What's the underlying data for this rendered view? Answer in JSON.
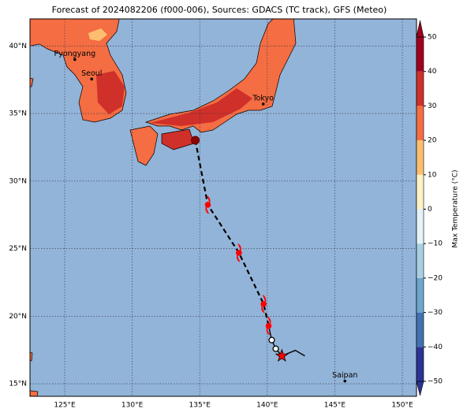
{
  "title": "Forecast of 2024082206 (f000-006), Sources: GDACS (TC track), GFS (Meteo)",
  "map": {
    "xlim": [
      122.43,
      151.05
    ],
    "ylim": [
      14.07,
      42
    ],
    "lon_ticks": [
      {
        "value": 125,
        "label": "125°E"
      },
      {
        "value": 130,
        "label": "130°E"
      },
      {
        "value": 135,
        "label": "135°E"
      },
      {
        "value": 140,
        "label": "140°E"
      },
      {
        "value": 145,
        "label": "145°E"
      },
      {
        "value": 150,
        "label": "150°E"
      }
    ],
    "lat_ticks": [
      {
        "value": 15,
        "label": "15°N"
      },
      {
        "value": 20,
        "label": "20°N"
      },
      {
        "value": 25,
        "label": "25°N"
      },
      {
        "value": 30,
        "label": "30°N"
      },
      {
        "value": 35,
        "label": "35°N"
      },
      {
        "value": 40,
        "label": "40°N"
      }
    ],
    "grid": true,
    "ocean_color": "#92b4d8"
  },
  "colorbar": {
    "label": "Max Temperature (°C)",
    "lim": [
      -50,
      50
    ],
    "ticks": [
      {
        "value": -50,
        "label": "−50"
      },
      {
        "value": -40,
        "label": "−40"
      },
      {
        "value": -30,
        "label": "−30"
      },
      {
        "value": -20,
        "label": "−20"
      },
      {
        "value": -10,
        "label": "−10"
      },
      0,
      10,
      20,
      30,
      40,
      50
    ],
    "colors": [
      "#2b3494",
      "#4271b1",
      "#6ea6cd",
      "#a8d0e4",
      "#e3f3f8",
      "#fef3c6",
      "#fdbf6f",
      "#f46d43",
      "#d0302a",
      "#a0001f"
    ]
  },
  "cities": [
    {
      "name": "Pyongyang",
      "lon": 125.75,
      "lat": 39.0
    },
    {
      "name": "Seoul",
      "lon": 127.0,
      "lat": 37.55
    },
    {
      "name": "Tokyo",
      "lon": 139.7,
      "lat": 35.7
    },
    {
      "name": "Saipan",
      "lon": 145.75,
      "lat": 15.2
    }
  ],
  "dashed_track": [
    {
      "lon": 134.67,
      "lat": 33.02,
      "marker": "past"
    },
    {
      "lon": 135.6,
      "lat": 28.24,
      "marker": "storm"
    },
    {
      "lon": 137.9,
      "lat": 24.69,
      "marker": "storm"
    },
    {
      "lon": 139.73,
      "lat": 20.9,
      "marker": "storm"
    },
    {
      "lon": 140.1,
      "lat": 19.28,
      "marker": "storm"
    }
  ],
  "solid_track": [
    {
      "lon": 140.1,
      "lat": 19.28
    },
    {
      "lon": 140.33,
      "lat": 18.23,
      "marker": "open"
    },
    {
      "lon": 140.63,
      "lat": 17.59,
      "marker": "open"
    },
    {
      "lon": 141.08,
      "lat": 17.06,
      "marker": "star"
    },
    {
      "lon": 142.08,
      "lat": 17.47
    },
    {
      "lon": 142.78,
      "lat": 17.06
    }
  ]
}
